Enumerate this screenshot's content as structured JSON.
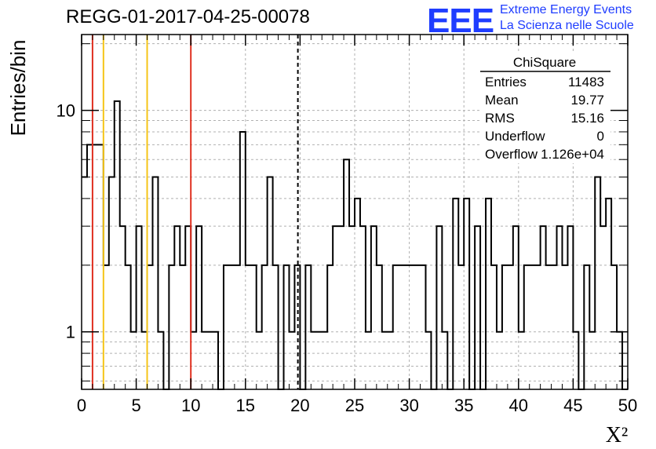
{
  "header": {
    "title": "REGG-01-2017-04-25-00078",
    "logo_text": "EEE",
    "logo_line1": "Extreme Energy Events",
    "logo_line2": "La Scienza nelle Scuole"
  },
  "colors": {
    "accent": "#1f3dff",
    "red_line": "#e03020",
    "yellow_line": "#f5c518",
    "text": "#000000"
  },
  "stats": {
    "title": "ChiSquare",
    "rows": [
      {
        "label": "Entries",
        "value": "11483"
      },
      {
        "label": "Mean",
        "value": "19.77"
      },
      {
        "label": "RMS",
        "value": "15.16"
      },
      {
        "label": "Underflow",
        "value": "0"
      },
      {
        "label": "Overflow",
        "value": "1.126e+04"
      }
    ]
  },
  "chart_data": {
    "type": "histogram",
    "title": "REGG-01-2017-04-25-00078",
    "xlabel": "X²",
    "ylabel": "Entries/bin",
    "xlim": [
      0,
      50
    ],
    "ylim": [
      0.55,
      22
    ],
    "yscale": "log",
    "grid": true,
    "bin_width": 0.5,
    "x_ticks": [
      0,
      5,
      10,
      15,
      20,
      25,
      30,
      35,
      40,
      45,
      50
    ],
    "y_ticks": [
      1,
      10
    ],
    "values": [
      5,
      7,
      7,
      7,
      2,
      5,
      11,
      3,
      2,
      1,
      3,
      1,
      2,
      5,
      1,
      0,
      2,
      3,
      2,
      3,
      1,
      3,
      1,
      1,
      1,
      0,
      2,
      2,
      2,
      8,
      2,
      2,
      1,
      2,
      5,
      2,
      0,
      2,
      1,
      2,
      0,
      2,
      1,
      1,
      1,
      2,
      3,
      3,
      6,
      3,
      4,
      3,
      1,
      3,
      2,
      1,
      1,
      2,
      2,
      2,
      2,
      2,
      2,
      1,
      0,
      3,
      1,
      0,
      4,
      2,
      4,
      0,
      3,
      0,
      4,
      2,
      1,
      2,
      2,
      3,
      1,
      2,
      2,
      2,
      3,
      2,
      2,
      3,
      2,
      3,
      1,
      0,
      2,
      1,
      5,
      3,
      4,
      2,
      1,
      0
    ],
    "reference_lines": [
      {
        "x": 1,
        "color": "#e03020",
        "style": "solid"
      },
      {
        "x": 2,
        "color": "#f5c518",
        "style": "solid"
      },
      {
        "x": 6,
        "color": "#f5c518",
        "style": "solid"
      },
      {
        "x": 10,
        "color": "#e03020",
        "style": "solid"
      },
      {
        "x": 19.8,
        "color": "#000000",
        "style": "dashed"
      }
    ]
  }
}
